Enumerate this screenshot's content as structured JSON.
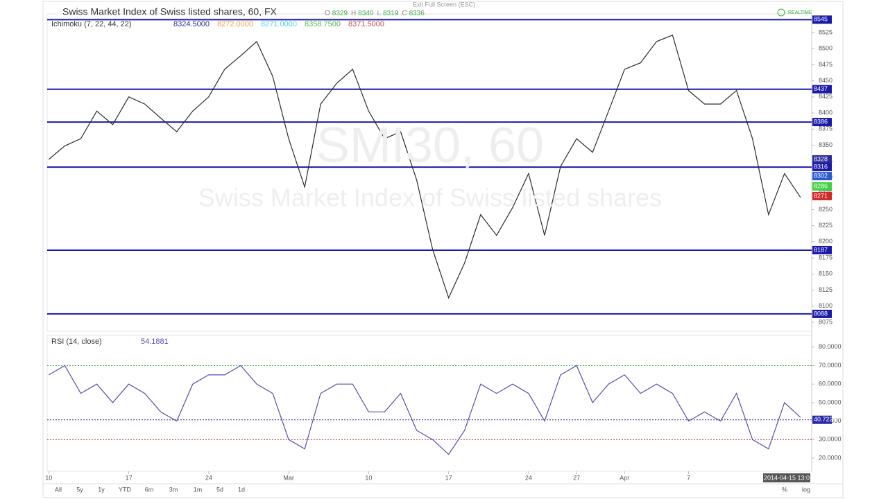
{
  "screen": {
    "exit_hint": "Exit Full Screen (ESC)",
    "realtime": "REALTIME",
    "cursor_time": "2014-04-15 13:0",
    "ranges": [
      "All",
      "5y",
      "1y",
      "YTD",
      "6m",
      "3m",
      "1m",
      "5d",
      "1d"
    ],
    "percent": "%",
    "log": "log"
  },
  "chart_data": [
    {
      "type": "line",
      "title": "Swiss Market Index of Swiss listed shares, 60, FX",
      "ohlc": [
        {
          "label": "O",
          "value": 8329
        },
        {
          "label": "H",
          "value": 8340
        },
        {
          "label": "L",
          "value": 8319
        },
        {
          "label": "C",
          "value": 8336
        }
      ],
      "indicator": "Ichimoku (7, 22, 44, 22)",
      "indicator_values": [
        {
          "text": "8324.5000",
          "color": "#2a2a9a"
        },
        {
          "text": "8272.0000",
          "color": "#e8a040"
        },
        {
          "text": "8271.0000",
          "color": "#40d8e8"
        },
        {
          "text": "8358.7500",
          "color": "#4cb84c"
        },
        {
          "text": "8371.5000",
          "color": "#c84848"
        }
      ],
      "watermark": "SMI30, 60",
      "watermark_name": "Swiss Market Index of Swiss listed shares",
      "x": [
        0,
        1,
        2,
        3,
        4,
        5,
        6,
        7,
        8,
        9,
        10,
        11,
        12,
        13,
        14,
        15,
        16,
        17,
        18,
        19,
        20,
        21,
        22,
        23,
        24,
        25,
        26,
        27,
        28,
        29,
        30,
        31,
        32,
        33,
        34,
        35,
        36,
        37,
        38,
        39,
        40,
        41,
        42,
        43,
        44,
        45,
        46,
        47
      ],
      "xlim": [
        -0.1,
        47.7
      ],
      "xticks": [
        {
          "value": 0,
          "label": "10"
        },
        {
          "value": 5,
          "label": "17"
        },
        {
          "value": 10,
          "label": "24"
        },
        {
          "value": 15,
          "label": "Mar"
        },
        {
          "value": 20,
          "label": "10"
        },
        {
          "value": 25,
          "label": "17"
        },
        {
          "value": 30,
          "label": "24"
        },
        {
          "value": 33,
          "label": "27"
        },
        {
          "value": 36,
          "label": "Apr"
        },
        {
          "value": 40,
          "label": "7"
        }
      ],
      "ylim": [
        8061,
        8554
      ],
      "yticks": [
        8075,
        8100,
        8125,
        8150,
        8175,
        8200,
        8225,
        8250,
        8275,
        8300,
        8325,
        8350,
        8375,
        8400,
        8425,
        8450,
        8475,
        8500,
        8525
      ],
      "series": [
        {
          "color": "#2b2b2b",
          "values": [
            8328,
            8349,
            8360,
            8403,
            8382,
            8425,
            8414,
            8392,
            8371,
            8403,
            8425,
            8468,
            8489,
            8511,
            8457,
            8360,
            8285,
            8414,
            8446,
            8468,
            8403,
            8360,
            8371,
            8296,
            8188,
            8113,
            8167,
            8242,
            8210,
            8253,
            8306,
            8210,
            8317,
            8360,
            8339,
            8403,
            8468,
            8478,
            8511,
            8521,
            8435,
            8414,
            8414,
            8435,
            8360,
            8242,
            8306,
            8269
          ]
        }
      ],
      "levels": [
        {
          "value": 8545,
          "color": "#1a1aa8",
          "line": true
        },
        {
          "value": 8437,
          "color": "#1a1aa8",
          "line": true
        },
        {
          "value": 8386,
          "color": "#1a1aa8",
          "line": true
        },
        {
          "value": 8328,
          "color": "#2a2a9a",
          "line": false
        },
        {
          "value": 8316,
          "color": "#1a1aa8",
          "line": true
        },
        {
          "value": 8302,
          "color": "#2a5ad0",
          "line": false
        },
        {
          "value": 8286,
          "color": "#40d040",
          "line": false
        },
        {
          "value": 8271,
          "color": "#d02828",
          "line": false
        },
        {
          "value": 8187,
          "color": "#1a1aa8",
          "line": true
        },
        {
          "value": 8088,
          "color": "#1a1aa8",
          "line": true
        }
      ]
    },
    {
      "type": "line",
      "title": "RSI (14, close)",
      "current": "54.1881",
      "x": [
        0,
        1,
        2,
        3,
        4,
        5,
        6,
        7,
        8,
        9,
        10,
        11,
        12,
        13,
        14,
        15,
        16,
        17,
        18,
        19,
        20,
        21,
        22,
        23,
        24,
        25,
        26,
        27,
        28,
        29,
        30,
        31,
        32,
        33,
        34,
        35,
        36,
        37,
        38,
        39,
        40,
        41,
        42,
        43,
        44,
        45,
        46,
        47
      ],
      "xlim": [
        -0.1,
        47.7
      ],
      "ylim": [
        12.9,
        86.3
      ],
      "yticks": [
        {
          "value": 20,
          "label": "20.0000"
        },
        {
          "value": 30,
          "label": "30.0000"
        },
        {
          "value": 40,
          "label": "40.0000"
        },
        {
          "value": 50,
          "label": "50.0000"
        },
        {
          "value": 60,
          "label": "60.0000"
        },
        {
          "value": 70,
          "label": "70.0000"
        },
        {
          "value": 80,
          "label": "80.0000"
        }
      ],
      "series": [
        {
          "color": "#5a4ab0",
          "values": [
            65,
            70,
            55,
            60,
            50,
            60,
            55,
            45,
            40,
            60,
            65,
            65,
            70,
            60,
            55,
            30,
            25,
            55,
            60,
            60,
            45,
            45,
            55,
            35,
            30,
            22,
            35,
            60,
            55,
            60,
            55,
            40,
            65,
            70,
            50,
            60,
            65,
            55,
            60,
            55,
            40,
            45,
            40,
            55,
            30,
            25,
            50,
            42
          ]
        }
      ],
      "levels": [
        {
          "value": 70,
          "color": "#40c040",
          "line": true
        },
        {
          "value": 30,
          "color": "#d03030",
          "line": true
        },
        {
          "value": 40.7224,
          "color": "#2a2aa8",
          "line": true
        }
      ]
    }
  ]
}
